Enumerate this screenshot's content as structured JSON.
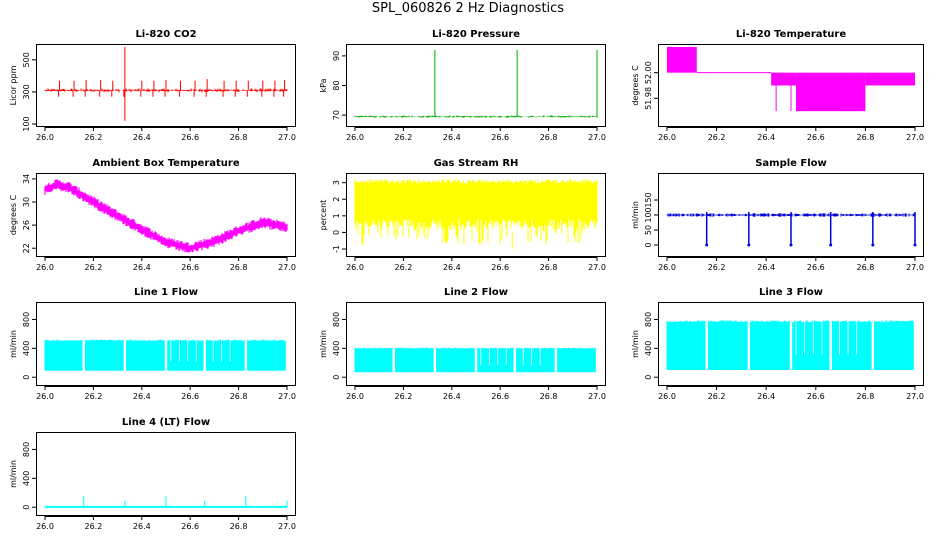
{
  "figure_title": "SPL_060826  2 Hz Diagnostics",
  "chart_data": [
    {
      "id": "co2",
      "type": "line",
      "title": "Li-820 CO2",
      "ylabel": "Licor ppm",
      "xlabel": "",
      "color": "#ff0000",
      "xlim": [
        26.0,
        27.0
      ],
      "ylim": [
        100,
        580
      ],
      "xticks": [
        26.0,
        26.2,
        26.4,
        26.6,
        26.8,
        27.0
      ],
      "xtick_labels": [
        "26.0",
        "26.2",
        "26.4",
        "26.6",
        "26.8",
        "27.0"
      ],
      "yticks": [
        100,
        300,
        500
      ],
      "ytick_labels": [
        "100",
        "300",
        "500"
      ],
      "series": [
        {
          "name": "CO2",
          "baseline": 310,
          "noise": 12,
          "spikes": [
            [
              26.06,
              370
            ],
            [
              26.12,
              370
            ],
            [
              26.17,
              375
            ],
            [
              26.23,
              375
            ],
            [
              26.28,
              370
            ],
            [
              26.33,
              580
            ],
            [
              26.33,
              120
            ],
            [
              26.4,
              370
            ],
            [
              26.45,
              370
            ],
            [
              26.5,
              375
            ],
            [
              26.56,
              370
            ],
            [
              26.62,
              370
            ],
            [
              26.67,
              380
            ],
            [
              26.74,
              370
            ],
            [
              26.79,
              370
            ],
            [
              26.84,
              370
            ],
            [
              26.9,
              370
            ],
            [
              26.95,
              370
            ],
            [
              26.99,
              375
            ]
          ]
        }
      ]
    },
    {
      "id": "pressure",
      "type": "line",
      "title": "Li-820 Pressure",
      "ylabel": "kPa",
      "xlabel": "",
      "color": "#00b000",
      "xlim": [
        26.0,
        27.0
      ],
      "ylim": [
        67,
        93
      ],
      "xticks": [
        26.0,
        26.2,
        26.4,
        26.6,
        26.8,
        27.0
      ],
      "xtick_labels": [
        "26.0",
        "26.2",
        "26.4",
        "26.6",
        "26.8",
        "27.0"
      ],
      "yticks": [
        70,
        80,
        90
      ],
      "ytick_labels": [
        "70",
        "80",
        "90"
      ],
      "series": [
        {
          "name": "Pressure",
          "baseline": 69.5,
          "noise": 0.4,
          "spikes": [
            [
              26.33,
              92
            ],
            [
              26.67,
              92
            ],
            [
              27.0,
              92
            ]
          ]
        }
      ]
    },
    {
      "id": "licor_temp",
      "type": "step",
      "title": "Li-820 Temperature",
      "ylabel": "degrees C",
      "xlabel": "",
      "color": "#ff00ff",
      "xlim": [
        26.0,
        27.0
      ],
      "ylim": [
        51.96,
        52.02
      ],
      "xticks": [
        26.0,
        26.2,
        26.4,
        26.6,
        26.8,
        27.0
      ],
      "xtick_labels": [
        "26.0",
        "26.2",
        "26.4",
        "26.6",
        "26.8",
        "27.0"
      ],
      "yticks": [
        51.98,
        52.0
      ],
      "ytick_labels": [
        "51.98",
        "52.00"
      ],
      "series": [
        {
          "name": "Temperature",
          "levels": [
            52.02,
            52.0,
            51.99,
            51.98,
            51.97
          ],
          "bands": [
            [
              26.0,
              26.12,
              52.0,
              52.02
            ],
            [
              26.12,
              26.42,
              52.0,
              52.0
            ],
            [
              26.42,
              26.52,
              51.99,
              52.0
            ],
            [
              26.52,
              26.8,
              51.97,
              52.0
            ],
            [
              26.8,
              27.0,
              51.99,
              52.0
            ]
          ]
        }
      ]
    },
    {
      "id": "ambient_temp",
      "type": "line",
      "title": "Ambient Box Temperature",
      "ylabel": "degrees C",
      "xlabel": "",
      "color": "#ff00ff",
      "xlim": [
        26.0,
        27.0
      ],
      "ylim": [
        21,
        34.5
      ],
      "xticks": [
        26.0,
        26.2,
        26.4,
        26.6,
        26.8,
        27.0
      ],
      "xtick_labels": [
        "26.0",
        "26.2",
        "26.4",
        "26.6",
        "26.8",
        "27.0"
      ],
      "yticks": [
        22,
        26,
        30,
        34
      ],
      "ytick_labels": [
        "22",
        "26",
        "30",
        "34"
      ],
      "series": [
        {
          "name": "Ambient",
          "x": [
            26.0,
            26.05,
            26.1,
            26.2,
            26.3,
            26.4,
            26.5,
            26.6,
            26.7,
            26.8,
            26.9,
            27.0
          ],
          "y": [
            32.2,
            33.0,
            32.5,
            30.0,
            27.6,
            25.3,
            23.0,
            22.0,
            23.2,
            25.0,
            26.5,
            25.6
          ],
          "noise": 1.0
        }
      ]
    },
    {
      "id": "rh",
      "type": "line",
      "title": "Gas Stream RH",
      "ylabel": "percent",
      "xlabel": "",
      "color": "#ffff00",
      "xlim": [
        26.0,
        27.0
      ],
      "ylim": [
        -1.3,
        3.4
      ],
      "xticks": [
        26.0,
        26.2,
        26.4,
        26.6,
        26.8,
        27.0
      ],
      "xtick_labels": [
        "26.0",
        "26.2",
        "26.4",
        "26.6",
        "26.8",
        "27.0"
      ],
      "yticks": [
        -1,
        0,
        1,
        2,
        3
      ],
      "ytick_labels": [
        "-1",
        "0",
        "1",
        "2",
        "3"
      ],
      "series": [
        {
          "name": "RH",
          "band": [
            0.2,
            3.2
          ],
          "dips_to": -1
        }
      ]
    },
    {
      "id": "sample_flow",
      "type": "line",
      "title": "Sample Flow",
      "ylabel": "ml/min",
      "xlabel": "",
      "color": "#0000dd",
      "xlim": [
        26.0,
        27.0
      ],
      "ylim": [
        -30,
        230
      ],
      "xticks": [
        26.0,
        26.2,
        26.4,
        26.6,
        26.8,
        27.0
      ],
      "xtick_labels": [
        "26.0",
        "26.2",
        "26.4",
        "26.6",
        "26.8",
        "27.0"
      ],
      "yticks": [
        0,
        50,
        100,
        150
      ],
      "ytick_labels": [
        "0",
        "50",
        "100",
        "150"
      ],
      "series": [
        {
          "name": "Sample",
          "baseline": 100,
          "noise": 6,
          "dips": [
            26.16,
            26.33,
            26.5,
            26.66,
            26.83,
            27.0
          ]
        }
      ]
    },
    {
      "id": "line1",
      "type": "line",
      "title": "Line 1 Flow",
      "ylabel": "ml/min",
      "xlabel": "",
      "color": "#00ffff",
      "xlim": [
        26.0,
        27.0
      ],
      "ylim": [
        -80,
        1000
      ],
      "xticks": [
        26.0,
        26.2,
        26.4,
        26.6,
        26.8,
        27.0
      ],
      "xtick_labels": [
        "26.0",
        "26.2",
        "26.4",
        "26.6",
        "26.8",
        "27.0"
      ],
      "yticks": [
        0,
        400,
        800
      ],
      "ytick_labels": [
        "0",
        "400",
        "800"
      ],
      "series": [
        {
          "name": "Line 1",
          "high": 520,
          "low": 90,
          "gaps": [
            26.16,
            26.33,
            26.5,
            26.66,
            26.83,
            27.0
          ]
        }
      ]
    },
    {
      "id": "line2",
      "type": "line",
      "title": "Line 2 Flow",
      "ylabel": "ml/min",
      "xlabel": "",
      "color": "#00ffff",
      "xlim": [
        26.0,
        27.0
      ],
      "ylim": [
        -80,
        1000
      ],
      "xticks": [
        26.0,
        26.2,
        26.4,
        26.6,
        26.8,
        27.0
      ],
      "xtick_labels": [
        "26.0",
        "26.2",
        "26.4",
        "26.6",
        "26.8",
        "27.0"
      ],
      "yticks": [
        0,
        400,
        800
      ],
      "ytick_labels": [
        "0",
        "400",
        "800"
      ],
      "series": [
        {
          "name": "Line 2",
          "high": 410,
          "low": 70,
          "gaps": [
            26.16,
            26.33,
            26.5,
            26.66,
            26.83,
            27.0
          ]
        }
      ]
    },
    {
      "id": "line3",
      "type": "line",
      "title": "Line 3 Flow",
      "ylabel": "ml/min",
      "xlabel": "",
      "color": "#00ffff",
      "xlim": [
        26.0,
        27.0
      ],
      "ylim": [
        -80,
        1000
      ],
      "xticks": [
        26.0,
        26.2,
        26.4,
        26.6,
        26.8,
        27.0
      ],
      "xtick_labels": [
        "26.0",
        "26.2",
        "26.4",
        "26.6",
        "26.8",
        "27.0"
      ],
      "yticks": [
        0,
        400,
        800
      ],
      "ytick_labels": [
        "0",
        "400",
        "800"
      ],
      "series": [
        {
          "name": "Line 3",
          "high": 790,
          "low": 100,
          "gaps": [
            26.16,
            26.33,
            26.5,
            26.66,
            26.83,
            27.0
          ]
        }
      ]
    },
    {
      "id": "line4",
      "type": "line",
      "title": "Line 4 (LT) Flow",
      "ylabel": "ml/min",
      "xlabel": "",
      "color": "#00ffff",
      "xlim": [
        26.0,
        27.0
      ],
      "ylim": [
        -80,
        1000
      ],
      "xticks": [
        26.0,
        26.2,
        26.4,
        26.6,
        26.8,
        27.0
      ],
      "xtick_labels": [
        "26.0",
        "26.2",
        "26.4",
        "26.6",
        "26.8",
        "27.0"
      ],
      "yticks": [
        0,
        400,
        800
      ],
      "ytick_labels": [
        "0",
        "400",
        "800"
      ],
      "series": [
        {
          "name": "Line 4",
          "baseline": 5,
          "spikes": [
            [
              26.16,
              150
            ],
            [
              26.33,
              90
            ],
            [
              26.5,
              150
            ],
            [
              26.66,
              90
            ],
            [
              26.83,
              150
            ],
            [
              27.0,
              90
            ]
          ]
        }
      ]
    }
  ]
}
